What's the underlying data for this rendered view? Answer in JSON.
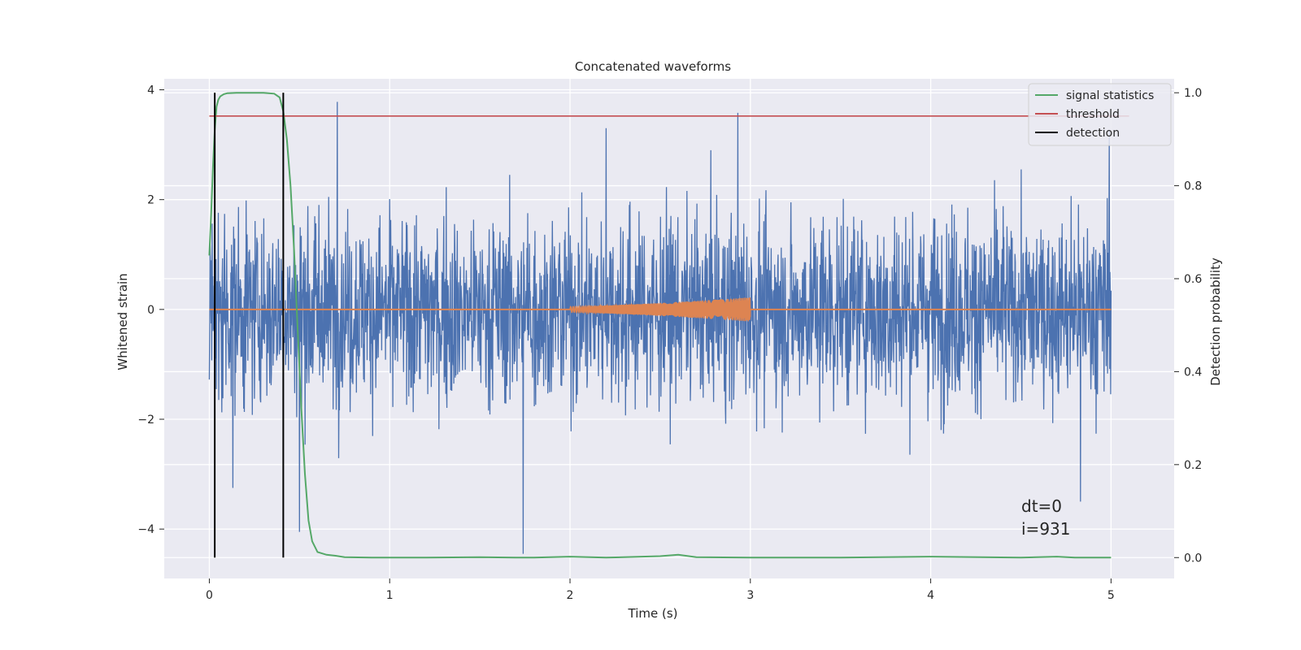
{
  "chart_data": {
    "type": "line",
    "title": "Concatenated waveforms",
    "xlabel": "Time (s)",
    "ylabel_left": "Whitened strain",
    "ylabel_right": "Detection probability",
    "xlim": [
      -0.25,
      5.35
    ],
    "ylim_left": [
      -4.9,
      4.2
    ],
    "ylim_right": [
      -0.045,
      1.03
    ],
    "x_ticks": [
      0,
      1,
      2,
      3,
      4,
      5
    ],
    "y_left_ticks": [
      -4,
      -2,
      0,
      2,
      4
    ],
    "y_right_ticks": [
      0.0,
      0.2,
      0.4,
      0.6,
      0.8,
      1.0
    ],
    "grid": true,
    "background": "#eaeaf2",
    "legend_position": "top-right",
    "series": [
      {
        "name": "",
        "axis": "left",
        "color": "#4c72b0",
        "kind": "noise",
        "x_range": [
          0,
          5
        ],
        "std": 0.85,
        "notable_peaks": [
          [
            0.71,
            3.78
          ],
          [
            2.93,
            3.58
          ],
          [
            4.99,
            3.25
          ],
          [
            2.2,
            3.3
          ],
          [
            1.74,
            -4.45
          ],
          [
            0.5,
            -4.05
          ],
          [
            4.83,
            -3.5
          ],
          [
            0.13,
            -3.25
          ]
        ]
      },
      {
        "name": "",
        "axis": "left",
        "color": "#dd8452",
        "kind": "chirp",
        "baseline_x": [
          0,
          5
        ],
        "chirp_x": [
          2.0,
          3.0
        ],
        "amplitude_start": 0.05,
        "amplitude_end": 0.22
      },
      {
        "name": "signal statistics",
        "axis": "right",
        "color": "#55a868",
        "x": [
          0,
          0.01,
          0.02,
          0.03,
          0.04,
          0.05,
          0.06,
          0.08,
          0.1,
          0.15,
          0.2,
          0.3,
          0.36,
          0.39,
          0.41,
          0.43,
          0.45,
          0.47,
          0.49,
          0.51,
          0.53,
          0.55,
          0.57,
          0.6,
          0.65,
          0.7,
          0.75,
          0.9,
          1.2,
          1.5,
          1.7,
          1.8,
          2.0,
          2.2,
          2.5,
          2.6,
          2.7,
          3.0,
          3.5,
          4.0,
          4.5,
          4.7,
          4.8,
          5.0
        ],
        "y": [
          0.65,
          0.74,
          0.84,
          0.92,
          0.97,
          0.985,
          0.992,
          0.997,
          0.999,
          1.0,
          1.0,
          1.0,
          0.998,
          0.99,
          0.96,
          0.9,
          0.8,
          0.66,
          0.49,
          0.32,
          0.18,
          0.08,
          0.035,
          0.012,
          0.006,
          0.004,
          0.001,
          0.0,
          0.0,
          0.001,
          0.0,
          0.0,
          0.002,
          0.0,
          0.003,
          0.006,
          0.001,
          0.0,
          0.0,
          0.002,
          0.0,
          0.002,
          0.0,
          0.0
        ]
      },
      {
        "name": "threshold",
        "axis": "right",
        "color": "#c44e52",
        "x": [
          0,
          5.1
        ],
        "y": [
          0.95,
          0.95
        ]
      },
      {
        "name": "detection",
        "axis": "right",
        "color": "#000000",
        "vertical_lines_x": [
          0.03,
          0.41
        ],
        "y_range": [
          0.0,
          1.0
        ]
      }
    ],
    "annotations": [
      "dt=0",
      "i=931"
    ]
  }
}
